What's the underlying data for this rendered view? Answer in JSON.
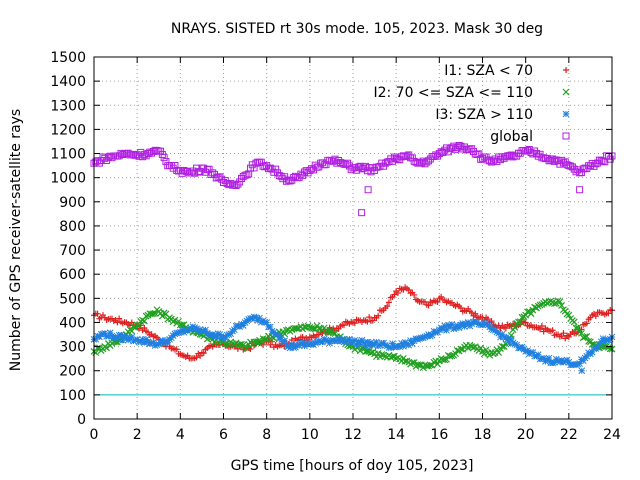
{
  "chart_data": {
    "type": "scatter",
    "title": "NRAYS. SISTED rt 30s mode. 105, 2023. Mask 30 deg",
    "xlabel": "GPS time [hours of doy 105, 2023]",
    "ylabel": "Number of GPS receiver-satellite rays",
    "xlim": [
      0,
      24
    ],
    "ylim": [
      0,
      1500
    ],
    "xticks": [
      0,
      2,
      4,
      6,
      8,
      10,
      12,
      14,
      16,
      18,
      20,
      22,
      24
    ],
    "yticks": [
      0,
      100,
      200,
      300,
      400,
      500,
      600,
      700,
      800,
      900,
      1000,
      1100,
      1200,
      1300,
      1400,
      1500
    ],
    "grid": true,
    "legend_position": "top-right",
    "reference_line": {
      "y": 100,
      "color": "#00c0c0"
    },
    "series": [
      {
        "name": "I1: SZA < 70",
        "marker": "+",
        "color": "#e02020",
        "x": [
          0,
          0.5,
          1,
          1.5,
          2,
          2.5,
          3,
          3.5,
          4,
          4.5,
          5,
          5.5,
          6,
          6.5,
          7,
          7.5,
          8,
          8.5,
          9,
          9.5,
          10,
          10.5,
          11,
          11.5,
          12,
          12.5,
          13,
          13.5,
          14,
          14.5,
          15,
          15.5,
          16,
          16.5,
          17,
          17.5,
          18,
          18.5,
          19,
          19.5,
          20,
          20.5,
          21,
          21.5,
          22,
          22.5,
          23,
          23.5,
          24
        ],
        "values": [
          430,
          420,
          410,
          400,
          390,
          360,
          330,
          300,
          270,
          250,
          275,
          300,
          310,
          300,
          290,
          310,
          320,
          300,
          310,
          330,
          340,
          360,
          370,
          390,
          400,
          410,
          420,
          460,
          530,
          540,
          490,
          470,
          500,
          480,
          460,
          440,
          420,
          390,
          380,
          390,
          400,
          380,
          370,
          350,
          340,
          370,
          420,
          440,
          450
        ]
      },
      {
        "name": "I2: 70 <= SZA <= 110",
        "marker": "x",
        "color": "#20a020",
        "x": [
          0,
          0.5,
          1,
          1.5,
          2,
          2.5,
          3,
          3.5,
          4,
          4.5,
          5,
          5.5,
          6,
          6.5,
          7,
          7.5,
          8,
          8.5,
          9,
          9.5,
          10,
          10.5,
          11,
          11.5,
          12,
          12.5,
          13,
          13.5,
          14,
          14.5,
          15,
          15.5,
          16,
          16.5,
          17,
          17.5,
          18,
          18.5,
          19,
          19.5,
          20,
          20.5,
          21,
          21.5,
          22,
          22.5,
          23,
          23.5,
          24
        ],
        "values": [
          280,
          300,
          320,
          350,
          390,
          430,
          445,
          420,
          390,
          370,
          350,
          330,
          320,
          310,
          300,
          320,
          330,
          350,
          370,
          375,
          380,
          375,
          360,
          330,
          300,
          290,
          270,
          260,
          250,
          240,
          225,
          220,
          240,
          260,
          290,
          300,
          280,
          270,
          300,
          380,
          430,
          460,
          480,
          490,
          430,
          360,
          320,
          300,
          290
        ]
      },
      {
        "name": "I3: SZA > 110",
        "marker": "*",
        "color": "#2080e0",
        "x": [
          0,
          0.5,
          1,
          1.5,
          2,
          2.5,
          3,
          3.5,
          4,
          4.5,
          5,
          5.5,
          6,
          6.5,
          7,
          7.5,
          8,
          8.5,
          9,
          9.5,
          10,
          10.5,
          11,
          11.5,
          12,
          12.5,
          13,
          13.5,
          14,
          14.5,
          15,
          15.5,
          16,
          16.5,
          17,
          17.5,
          18,
          18.5,
          19,
          19.5,
          20,
          20.5,
          21,
          21.5,
          22,
          22.5,
          23,
          23.5,
          24
        ],
        "values": [
          330,
          355,
          340,
          335,
          330,
          320,
          310,
          330,
          360,
          375,
          365,
          350,
          340,
          370,
          400,
          420,
          400,
          350,
          300,
          305,
          310,
          320,
          325,
          330,
          320,
          315,
          310,
          305,
          300,
          310,
          330,
          350,
          370,
          380,
          390,
          395,
          390,
          370,
          340,
          310,
          280,
          260,
          245,
          240,
          235,
          230,
          270,
          320,
          340
        ]
      },
      {
        "name": "global",
        "marker": "square",
        "color": "#b020e0",
        "x": [
          0,
          0.5,
          1,
          1.5,
          2,
          2.5,
          3,
          3.5,
          4,
          4.5,
          5,
          5.5,
          6,
          6.5,
          7,
          7.5,
          8,
          8.5,
          9,
          9.5,
          10,
          10.5,
          11,
          11.5,
          12,
          12.5,
          13,
          13.5,
          14,
          14.5,
          15,
          15.5,
          16,
          16.5,
          17,
          17.5,
          18,
          18.5,
          19,
          19.5,
          20,
          20.5,
          21,
          21.5,
          22,
          22.5,
          23,
          23.5,
          24
        ],
        "values": [
          1060,
          1080,
          1090,
          1100,
          1095,
          1100,
          1110,
          1050,
          1030,
          1020,
          1040,
          1020,
          980,
          970,
          1010,
          1060,
          1050,
          1020,
          990,
          1000,
          1030,
          1060,
          1070,
          1060,
          1040,
          1040,
          1030,
          1060,
          1080,
          1090,
          1060,
          1070,
          1100,
          1120,
          1130,
          1120,
          1080,
          1070,
          1080,
          1090,
          1110,
          1100,
          1080,
          1070,
          1050,
          1020,
          1050,
          1070,
          1090
        ]
      }
    ],
    "outliers": [
      {
        "series": "global",
        "x": 12.4,
        "y": 855
      },
      {
        "series": "global",
        "x": 12.7,
        "y": 950
      },
      {
        "series": "global",
        "x": 22.5,
        "y": 950
      },
      {
        "series": "I3: SZA > 110",
        "x": 22.6,
        "y": 200
      }
    ]
  }
}
